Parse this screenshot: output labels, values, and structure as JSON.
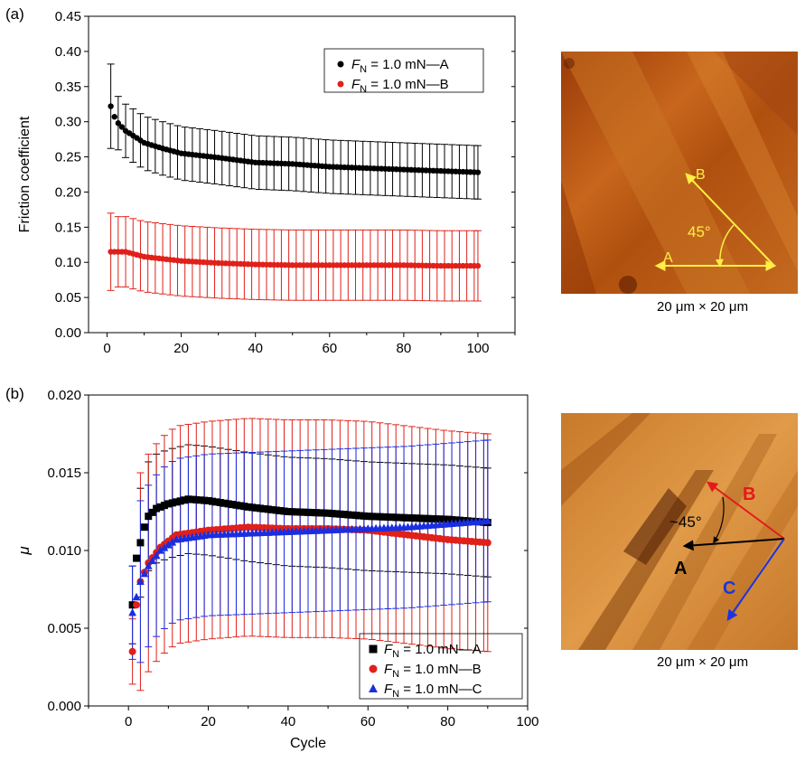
{
  "panels": {
    "a_label": "(a)",
    "b_label": "(b)"
  },
  "images": {
    "top_scale": "20 μm × 20 μm",
    "top_angle": "45°",
    "top_arrow_a": "A",
    "top_arrow_b": "B",
    "bottom_scale": "20 μm × 20 μm",
    "bottom_angle": "~45°",
    "bottom_arrow_a": "A",
    "bottom_arrow_b": "B",
    "bottom_arrow_c": "C"
  },
  "chart_data": [
    {
      "type": "scatter",
      "panel": "(a)",
      "xlabel": "",
      "ylabel": "Friction coefficient",
      "xlim": [
        -5,
        110
      ],
      "ylim": [
        0,
        0.45
      ],
      "xticks": [
        0,
        20,
        40,
        60,
        80,
        100
      ],
      "yticks": [
        0.0,
        0.05,
        0.1,
        0.15,
        0.2,
        0.25,
        0.3,
        0.35,
        0.4,
        0.45
      ],
      "ytick_decimals": 2,
      "legend_position": "top-right",
      "series": [
        {
          "name": "F_N = 1.0 mN—A",
          "legend_sym": "F",
          "legend_sub": "N",
          "legend_rest": " = 1.0 mN—A",
          "color": "#000000",
          "marker": "circle",
          "x_start": 1,
          "x_end": 100,
          "anchors": [
            [
              1,
              0.322
            ],
            [
              2,
              0.307
            ],
            [
              3,
              0.298
            ],
            [
              5,
              0.287
            ],
            [
              8,
              0.277
            ],
            [
              10,
              0.27
            ],
            [
              15,
              0.262
            ],
            [
              20,
              0.255
            ],
            [
              30,
              0.249
            ],
            [
              40,
              0.242
            ],
            [
              50,
              0.24
            ],
            [
              60,
              0.236
            ],
            [
              70,
              0.234
            ],
            [
              80,
              0.232
            ],
            [
              90,
              0.23
            ],
            [
              100,
              0.228
            ]
          ],
          "error": 0.038,
          "error_x": [
            1,
            3,
            5,
            7,
            9,
            11,
            13,
            15,
            17,
            19,
            21,
            23,
            25,
            27,
            29,
            31,
            33,
            35,
            37,
            39,
            41,
            43,
            45,
            47,
            49,
            51,
            53,
            55,
            57,
            59,
            61,
            63,
            65,
            67,
            69,
            71,
            73,
            75,
            77,
            79,
            81,
            83,
            85,
            87,
            89,
            91,
            93,
            95,
            97,
            99,
            100
          ],
          "error_first": 0.06
        },
        {
          "name": "F_N = 1.0 mN—B",
          "legend_sym": "F",
          "legend_sub": "N",
          "legend_rest": " = 1.0 mN—B",
          "color": "#e0201a",
          "marker": "circle",
          "x_start": 1,
          "x_end": 100,
          "anchors": [
            [
              1,
              0.115
            ],
            [
              5,
              0.115
            ],
            [
              10,
              0.108
            ],
            [
              20,
              0.102
            ],
            [
              30,
              0.099
            ],
            [
              40,
              0.097
            ],
            [
              50,
              0.096
            ],
            [
              60,
              0.096
            ],
            [
              70,
              0.096
            ],
            [
              80,
              0.096
            ],
            [
              90,
              0.095
            ],
            [
              100,
              0.095
            ]
          ],
          "error": 0.05,
          "error_x": [
            1,
            3,
            5,
            7,
            9,
            11,
            13,
            15,
            17,
            19,
            21,
            23,
            25,
            27,
            29,
            31,
            33,
            35,
            37,
            39,
            41,
            43,
            45,
            47,
            49,
            51,
            53,
            55,
            57,
            59,
            61,
            63,
            65,
            67,
            69,
            71,
            73,
            75,
            77,
            79,
            81,
            83,
            85,
            87,
            89,
            91,
            93,
            95,
            97,
            99,
            100
          ],
          "error_first": 0.055
        }
      ]
    },
    {
      "type": "scatter",
      "panel": "(b)",
      "xlabel": "Cycle",
      "ylabel": "μ",
      "xlim": [
        -10,
        100
      ],
      "ylim": [
        0,
        0.02
      ],
      "xticks": [
        0,
        20,
        40,
        60,
        80,
        100
      ],
      "yticks": [
        0.0,
        0.005,
        0.01,
        0.015,
        0.02
      ],
      "ytick_decimals": 3,
      "legend_position": "bottom-right",
      "series": [
        {
          "name": "F_N = 1.0 mN—A",
          "legend_sym": "F",
          "legend_sub": "N",
          "legend_rest": " = 1.0 mN—A",
          "color": "#000000",
          "marker": "square",
          "x_start": 1,
          "x_end": 90,
          "anchors": [
            [
              1,
              0.0065
            ],
            [
              2,
              0.0095
            ],
            [
              3,
              0.0105
            ],
            [
              4,
              0.0115
            ],
            [
              5,
              0.0122
            ],
            [
              7,
              0.0127
            ],
            [
              10,
              0.013
            ],
            [
              15,
              0.0133
            ],
            [
              20,
              0.0132
            ],
            [
              30,
              0.0128
            ],
            [
              40,
              0.0125
            ],
            [
              50,
              0.0124
            ],
            [
              60,
              0.0122
            ],
            [
              70,
              0.0121
            ],
            [
              80,
              0.012
            ],
            [
              90,
              0.0118
            ]
          ],
          "error": 0.0035,
          "error_x": [
            1,
            3,
            5,
            7,
            9,
            11,
            13,
            15,
            17,
            19,
            21,
            23,
            25,
            27,
            29,
            31,
            33,
            35,
            37,
            39,
            41,
            43,
            45,
            47,
            49,
            51,
            53,
            55,
            57,
            59,
            61,
            63,
            65,
            67,
            69,
            71,
            73,
            75,
            77,
            79,
            81,
            83,
            85,
            87,
            89,
            90
          ],
          "error_first": 0.0025
        },
        {
          "name": "F_N = 1.0 mN—B",
          "legend_sym": "F",
          "legend_sub": "N",
          "legend_rest": " = 1.0 mN—B",
          "color": "#e0201a",
          "marker": "circle",
          "x_start": 1,
          "x_end": 90,
          "anchors": [
            [
              1,
              0.0035
            ],
            [
              2,
              0.0065
            ],
            [
              3,
              0.008
            ],
            [
              5,
              0.0092
            ],
            [
              8,
              0.0102
            ],
            [
              12,
              0.011
            ],
            [
              20,
              0.0113
            ],
            [
              30,
              0.0115
            ],
            [
              40,
              0.0114
            ],
            [
              50,
              0.0114
            ],
            [
              60,
              0.0113
            ],
            [
              70,
              0.011
            ],
            [
              80,
              0.0107
            ],
            [
              90,
              0.0105
            ]
          ],
          "error": 0.007,
          "error_x": [
            1,
            3,
            5,
            7,
            9,
            11,
            13,
            15,
            17,
            19,
            21,
            23,
            25,
            27,
            29,
            31,
            33,
            35,
            37,
            39,
            41,
            43,
            45,
            47,
            49,
            51,
            53,
            55,
            57,
            59,
            61,
            63,
            65,
            67,
            69,
            71,
            73,
            75,
            77,
            79,
            81,
            83,
            85,
            87,
            89,
            90
          ],
          "error_first": 0.0021
        },
        {
          "name": "F_N = 1.0 mN—C",
          "legend_sym": "F",
          "legend_sub": "N",
          "legend_rest": " = 1.0 mN—C",
          "color": "#1a2ee0",
          "marker": "triangle",
          "x_start": 1,
          "x_end": 90,
          "anchors": [
            [
              1,
              0.006
            ],
            [
              2,
              0.007
            ],
            [
              3,
              0.008
            ],
            [
              5,
              0.009
            ],
            [
              8,
              0.01
            ],
            [
              12,
              0.0107
            ],
            [
              20,
              0.011
            ],
            [
              30,
              0.0111
            ],
            [
              40,
              0.0112
            ],
            [
              50,
              0.0113
            ],
            [
              60,
              0.0114
            ],
            [
              70,
              0.0115
            ],
            [
              80,
              0.0117
            ],
            [
              90,
              0.0119
            ]
          ],
          "error": 0.0052,
          "error_x": [
            1,
            3,
            5,
            7,
            9,
            11,
            13,
            15,
            17,
            19,
            21,
            23,
            25,
            27,
            29,
            31,
            33,
            35,
            37,
            39,
            41,
            43,
            45,
            47,
            49,
            51,
            53,
            55,
            57,
            59,
            61,
            63,
            65,
            67,
            69,
            71,
            73,
            75,
            77,
            79,
            81,
            83,
            85,
            87,
            89,
            90
          ],
          "error_first": 0.003
        }
      ]
    }
  ]
}
